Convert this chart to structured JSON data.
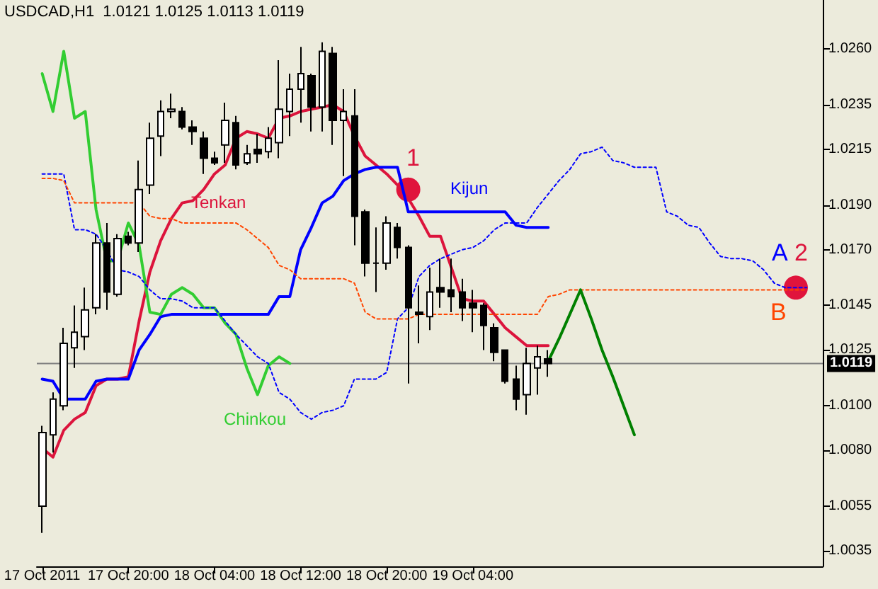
{
  "chart_data": {
    "type": "candlestick",
    "title": "USDCAD,H1  1.0121 1.0125 1.0113 1.0119",
    "categories": [
      "17 Oct 2011",
      null,
      null,
      null,
      null,
      null,
      null,
      null,
      "17 Oct 20:00",
      null,
      null,
      null,
      null,
      null,
      null,
      null,
      "18 Oct 04:00",
      null,
      null,
      null,
      null,
      null,
      null,
      null,
      "18 Oct 12:00",
      null,
      null,
      null,
      null,
      null,
      null,
      null,
      "18 Oct 20:00",
      null,
      null,
      null,
      null,
      null,
      null,
      null,
      "19 Oct 04:00",
      null,
      null,
      null,
      null,
      null,
      null,
      null,
      null,
      null,
      null,
      null,
      null,
      null,
      null,
      null,
      null,
      null,
      null,
      null,
      null,
      null,
      null,
      null,
      null,
      null,
      null,
      null,
      null,
      null,
      null,
      null,
      null
    ],
    "ohlc": [
      [
        1.0055,
        1.0091,
        1.0043,
        1.0088
      ],
      [
        1.0087,
        1.0106,
        1.0079,
        1.0103
      ],
      [
        1.01,
        1.0135,
        1.0098,
        1.0128
      ],
      [
        1.0126,
        1.0145,
        1.0117,
        1.0133
      ],
      [
        1.0131,
        1.0153,
        1.0125,
        1.0143
      ],
      [
        1.0144,
        1.0177,
        1.0141,
        1.0173
      ],
      [
        1.0173,
        1.0182,
        1.0143,
        1.0151
      ],
      [
        1.015,
        1.0177,
        1.0149,
        1.0175
      ],
      [
        1.0176,
        1.0178,
        1.0172,
        1.0173
      ],
      [
        1.0173,
        1.021,
        1.0169,
        1.0197
      ],
      [
        1.0199,
        1.0227,
        1.0195,
        1.022
      ],
      [
        1.0221,
        1.0237,
        1.0212,
        1.0232
      ],
      [
        1.0232,
        1.024,
        1.0229,
        1.0233
      ],
      [
        1.0232,
        1.0234,
        1.0224,
        1.0225
      ],
      [
        1.0225,
        1.0228,
        1.0217,
        1.0223
      ],
      [
        1.022,
        1.0223,
        1.0204,
        1.0211
      ],
      [
        1.0211,
        1.0214,
        1.0208,
        1.0209
      ],
      [
        1.0217,
        1.0236,
        1.0209,
        1.0228
      ],
      [
        1.0227,
        1.023,
        1.0206,
        1.0208
      ],
      [
        1.0209,
        1.0217,
        1.0208,
        1.0213
      ],
      [
        1.0215,
        1.0222,
        1.0209,
        1.0213
      ],
      [
        1.0214,
        1.0225,
        1.0211,
        1.022
      ],
      [
        1.0218,
        1.0255,
        1.0211,
        1.0233
      ],
      [
        1.0232,
        1.0249,
        1.0221,
        1.0242
      ],
      [
        1.0242,
        1.0261,
        1.0227,
        1.0249
      ],
      [
        1.0248,
        1.0249,
        1.0223,
        1.0234
      ],
      [
        1.0234,
        1.0263,
        1.0223,
        1.0259
      ],
      [
        1.0258,
        1.0261,
        1.0217,
        1.0228
      ],
      [
        1.0228,
        1.0242,
        1.0203,
        1.0232
      ],
      [
        1.023,
        1.0242,
        1.0172,
        1.0185
      ],
      [
        1.0187,
        1.0188,
        1.0158,
        1.0164
      ],
      [
        1.0164,
        1.018,
        1.0151,
        1.0164
      ],
      [
        1.0164,
        1.0185,
        1.0161,
        1.0182
      ],
      [
        1.018,
        1.0182,
        1.0166,
        1.0171
      ],
      [
        1.0171,
        1.0172,
        1.011,
        1.0144
      ],
      [
        1.0142,
        1.0154,
        1.0128,
        1.0141
      ],
      [
        1.014,
        1.0162,
        1.0134,
        1.0151
      ],
      [
        1.0153,
        1.0166,
        1.0144,
        1.0151
      ],
      [
        1.0152,
        1.0166,
        1.0142,
        1.0149
      ],
      [
        1.0151,
        1.0157,
        1.0138,
        1.0144
      ],
      [
        1.0146,
        1.0152,
        1.0133,
        1.0144
      ],
      [
        1.0145,
        1.0146,
        1.0125,
        1.0136
      ],
      [
        1.0135,
        1.0137,
        1.012,
        1.0124
      ],
      [
        1.0125,
        1.0125,
        1.011,
        1.0111
      ],
      [
        1.0112,
        1.0118,
        1.0098,
        1.0103
      ],
      [
        1.0105,
        1.0126,
        1.0096,
        1.0119
      ],
      [
        1.0117,
        1.0127,
        1.0105,
        1.0122
      ],
      [
        1.0121,
        1.0125,
        1.0113,
        1.0119
      ],
      null,
      null,
      null,
      null,
      null,
      null,
      null,
      null,
      null,
      null,
      null,
      null,
      null,
      null,
      null,
      null,
      null,
      null,
      null,
      null,
      null,
      null,
      null,
      null,
      null
    ],
    "series": [
      {
        "name": "Tenkan",
        "type": "line",
        "color": "#dc143c",
        "values": [
          1.0081,
          1.0077,
          1.0089,
          1.0094,
          1.0097,
          1.0109,
          1.0112,
          1.0112,
          1.0113,
          1.0138,
          1.016,
          1.0174,
          1.0184,
          1.0191,
          1.0192,
          1.0197,
          1.0204,
          1.0208,
          1.022,
          1.0223,
          1.0222,
          1.022,
          1.0229,
          1.023,
          1.0232,
          1.0233,
          1.0234,
          1.0235,
          1.0232,
          1.0221,
          1.0212,
          1.0208,
          1.0204,
          1.0199,
          1.0193,
          1.0185,
          1.0176,
          1.0176,
          1.0162,
          1.0148,
          1.0147,
          1.0147,
          1.0141,
          1.0135,
          1.0131,
          1.0127,
          1.0127,
          1.0127,
          null,
          null,
          null,
          null,
          null,
          null,
          null,
          null,
          null,
          null,
          null,
          null,
          null,
          null,
          null,
          null,
          null,
          null,
          null,
          null,
          null,
          null,
          null,
          null,
          null
        ]
      },
      {
        "name": "Kijun",
        "type": "line",
        "color": "#0000ff",
        "values": [
          1.0112,
          1.0111,
          1.0103,
          1.0103,
          1.0103,
          1.0111,
          1.0112,
          1.0112,
          1.0112,
          1.0125,
          1.0132,
          1.014,
          1.0141,
          1.0141,
          1.0141,
          1.0141,
          1.0141,
          1.0141,
          1.0141,
          1.0141,
          1.0141,
          1.0141,
          1.0149,
          1.0149,
          1.017,
          1.018,
          1.0191,
          1.0194,
          1.0201,
          1.0204,
          1.0206,
          1.0207,
          1.0207,
          1.0207,
          1.0187,
          1.0187,
          1.0187,
          1.0187,
          1.0187,
          1.0187,
          1.0187,
          1.0187,
          1.0187,
          1.0187,
          1.0181,
          1.018,
          1.018,
          1.018,
          null,
          null,
          null,
          null,
          null,
          null,
          null,
          null,
          null,
          null,
          null,
          null,
          null,
          null,
          null,
          null,
          null,
          null,
          null,
          null,
          null,
          null,
          null,
          null,
          null
        ]
      },
      {
        "name": "Chinkou",
        "type": "line",
        "color": "#32cd32",
        "values": [
          1.0249,
          1.0232,
          1.0259,
          1.0229,
          1.0232,
          1.0188,
          1.0165,
          1.0165,
          1.0182,
          1.0172,
          1.0142,
          1.0141,
          1.015,
          1.0153,
          1.015,
          1.0144,
          1.0144,
          1.0137,
          1.0132,
          1.0117,
          1.0105,
          1.0118,
          1.0122,
          1.0119,
          null,
          null,
          null,
          null,
          null,
          null,
          null,
          null,
          null,
          null,
          null,
          null,
          null,
          null,
          null,
          null,
          null,
          null,
          null,
          null,
          null,
          null,
          null,
          null,
          null,
          null,
          null,
          null,
          null,
          null,
          null,
          null,
          null,
          null,
          null,
          null,
          null,
          null,
          null,
          null,
          null,
          null,
          null,
          null,
          null,
          null,
          null,
          null,
          null
        ]
      },
      {
        "name": "A",
        "type": "line",
        "color": "#0000ff",
        "line_style": "dotted",
        "values": [
          1.0204,
          1.0204,
          1.0204,
          1.0179,
          1.0179,
          1.0177,
          1.017,
          1.0161,
          1.016,
          1.0158,
          1.0152,
          1.0148,
          1.0148,
          1.0147,
          1.0144,
          1.0144,
          1.0144,
          1.0138,
          1.0132,
          1.0127,
          1.0122,
          1.0119,
          1.0106,
          1.0103,
          1.0097,
          1.0094,
          1.0097,
          1.0098,
          1.01,
          1.0112,
          1.0112,
          1.0112,
          1.0115,
          1.0139,
          1.0144,
          1.0158,
          1.0163,
          1.0166,
          1.0168,
          1.017,
          1.0171,
          1.0174,
          1.0179,
          1.0182,
          1.0182,
          1.0182,
          1.0189,
          1.0195,
          1.0201,
          1.0206,
          1.0213,
          1.0214,
          1.0216,
          1.021,
          1.0209,
          1.0207,
          1.0207,
          1.0207,
          1.0187,
          1.0185,
          1.0181,
          1.018,
          1.0173,
          1.0167,
          1.0166,
          1.0166,
          1.0165,
          1.0161,
          1.0155,
          1.0153,
          1.0153,
          1.0153,
          null
        ]
      },
      {
        "name": "B",
        "type": "line",
        "color": "#ff4500",
        "line_style": "dotted",
        "values": [
          1.0202,
          1.0202,
          1.0201,
          1.0191,
          1.0191,
          1.0191,
          1.0191,
          1.0191,
          1.0191,
          1.0191,
          1.0185,
          1.0184,
          1.0184,
          1.0182,
          1.0182,
          1.0182,
          1.0182,
          1.0182,
          1.0182,
          1.0179,
          1.0175,
          1.0171,
          1.0163,
          1.0161,
          1.0157,
          1.0157,
          1.0157,
          1.0157,
          1.0157,
          1.0155,
          1.0142,
          1.0139,
          1.0139,
          1.0139,
          1.0139,
          1.0141,
          1.0141,
          1.0141,
          1.0141,
          1.0141,
          1.0141,
          1.0141,
          1.0141,
          1.0141,
          1.0141,
          1.0141,
          1.0141,
          1.0149,
          1.015,
          1.0152,
          1.0152,
          1.0152,
          1.0152,
          1.0152,
          1.0152,
          1.0152,
          1.0152,
          1.0152,
          1.0152,
          1.0152,
          1.0152,
          1.0152,
          1.0152,
          1.0152,
          1.0152,
          1.0152,
          1.0152,
          1.0152,
          1.0152,
          1.0152,
          1.0152,
          1.0152,
          null
        ]
      },
      {
        "type": "line",
        "color": "#008000",
        "values": [
          null,
          null,
          null,
          null,
          null,
          null,
          null,
          null,
          null,
          null,
          null,
          null,
          null,
          null,
          null,
          null,
          null,
          null,
          null,
          null,
          null,
          null,
          null,
          null,
          null,
          null,
          null,
          null,
          null,
          null,
          null,
          null,
          null,
          null,
          null,
          null,
          null,
          null,
          null,
          null,
          null,
          null,
          null,
          null,
          null,
          null,
          null,
          1.012,
          1.013,
          1.0141,
          1.0152,
          1.0139,
          1.0125,
          1.0113,
          1.01,
          1.0087,
          null,
          null,
          null,
          null,
          null,
          null,
          null,
          null,
          null,
          null,
          null,
          null,
          null,
          null,
          null,
          null,
          null
        ]
      },
      {
        "type": "scatter",
        "color": "#e0143c",
        "marker": "circle",
        "values": [
          null,
          null,
          null,
          null,
          null,
          null,
          null,
          null,
          null,
          null,
          null,
          null,
          null,
          null,
          null,
          null,
          null,
          null,
          null,
          null,
          null,
          null,
          null,
          null,
          null,
          null,
          null,
          null,
          null,
          null,
          null,
          null,
          null,
          null,
          1.0197,
          null,
          null,
          null,
          null,
          null,
          null,
          null,
          null,
          null,
          null,
          null,
          null,
          null,
          null,
          null,
          null,
          null,
          null,
          null,
          null,
          null,
          null,
          null,
          null,
          null,
          null,
          null,
          null,
          null,
          null,
          null,
          null,
          null,
          null,
          null,
          1.0153,
          null,
          null
        ]
      }
    ],
    "ylim": [
      1.0028,
      1.0282
    ],
    "yticks": [
      1.0035,
      1.0055,
      {
        "value": 1.008,
        "label": "1.0080"
      },
      {
        "value": 1.01,
        "label": "1.0100"
      },
      1.0125,
      1.0145,
      {
        "value": 1.017,
        "label": "1.0170"
      },
      {
        "value": 1.019,
        "label": "1.0190"
      },
      1.0215,
      1.0235,
      {
        "value": 1.026,
        "label": "1.0260"
      }
    ],
    "ref_lines": [
      {
        "axis": "y",
        "value": 1.0119,
        "label": "1.0119",
        "color": "#808080"
      }
    ],
    "annotations": [
      "1",
      "2"
    ],
    "grid": false,
    "legend": false
  }
}
